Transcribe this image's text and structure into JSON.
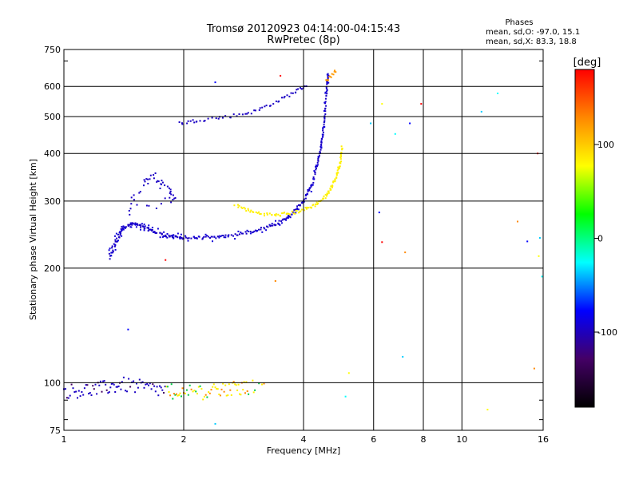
{
  "chart_data": {
    "type": "scatter",
    "title": "Tromsø 20120923 04:14:00-04:15:43",
    "subtitle": "RwPretec (8p)",
    "xlabel": "Frequency [MHz]",
    "ylabel": "Stationary phase Virtual Height [km]",
    "x_scale": "log2",
    "y_scale": "log",
    "xlim": [
      1,
      16
    ],
    "ylim": [
      75,
      750
    ],
    "x_ticks": [
      1,
      2,
      4,
      6,
      8,
      10,
      16
    ],
    "y_ticks": [
      75,
      100,
      200,
      300,
      400,
      500,
      600,
      750
    ],
    "grid": true,
    "phases_title": "Phases",
    "phases_o": "mean, sd,O: -97.0, 15.1",
    "phases_x": "mean, sd,X:  83.3, 18.8",
    "colorbar": {
      "label": "[deg]",
      "range": [
        -180,
        180
      ],
      "ticks": [
        100,
        0,
        -100
      ],
      "colors": [
        "#ff0000",
        "#ff8800",
        "#ffff00",
        "#00ff00",
        "#00ffff",
        "#0000ff",
        "#440066",
        "#000000"
      ]
    },
    "series": [
      {
        "name": "O-mode F-layer trace",
        "phase_deg": -97,
        "curve": [
          [
            1.3,
            212
          ],
          [
            1.35,
            235
          ],
          [
            1.4,
            255
          ],
          [
            1.5,
            262
          ],
          [
            1.6,
            255
          ],
          [
            1.7,
            248
          ],
          [
            1.85,
            242
          ],
          [
            2.0,
            240
          ],
          [
            2.3,
            240
          ],
          [
            2.6,
            243
          ],
          [
            3.0,
            250
          ],
          [
            3.4,
            260
          ],
          [
            3.7,
            275
          ],
          [
            4.0,
            300
          ],
          [
            4.2,
            330
          ],
          [
            4.35,
            380
          ],
          [
            4.45,
            430
          ],
          [
            4.52,
            500
          ],
          [
            4.58,
            600
          ],
          [
            4.62,
            650
          ]
        ],
        "upper_curve": [
          [
            1.95,
            480
          ],
          [
            2.2,
            490
          ],
          [
            2.6,
            500
          ],
          [
            3.0,
            515
          ],
          [
            3.4,
            545
          ],
          [
            3.8,
            580
          ],
          [
            4.1,
            605
          ]
        ],
        "cluster": [
          [
            1.45,
            280
          ],
          [
            1.55,
            320
          ],
          [
            1.65,
            355
          ],
          [
            1.75,
            330
          ],
          [
            1.85,
            320
          ],
          [
            1.9,
            300
          ],
          [
            1.5,
            290
          ]
        ]
      },
      {
        "name": "X-mode F-layer trace",
        "phase_deg": 83,
        "curve": [
          [
            2.7,
            292
          ],
          [
            3.0,
            280
          ],
          [
            3.4,
            275
          ],
          [
            3.8,
            280
          ],
          [
            4.2,
            290
          ],
          [
            4.5,
            305
          ],
          [
            4.7,
            325
          ],
          [
            4.85,
            350
          ],
          [
            4.95,
            380
          ],
          [
            5.0,
            420
          ]
        ],
        "upper_curve": [
          [
            4.55,
            620
          ],
          [
            4.7,
            640
          ],
          [
            4.85,
            665
          ]
        ]
      },
      {
        "name": "E-region echoes",
        "band": [
          [
            1.0,
            95
          ],
          [
            1.2,
            96
          ],
          [
            1.4,
            99
          ],
          [
            1.7,
            96
          ],
          [
            2.0,
            94
          ],
          [
            2.4,
            95
          ],
          [
            2.8,
            97
          ],
          [
            3.2,
            98
          ]
        ]
      },
      {
        "name": "scattered points",
        "points": [
          [
            2.4,
            615
          ],
          [
            3.5,
            640
          ],
          [
            5.9,
            480
          ],
          [
            6.3,
            540
          ],
          [
            6.8,
            450
          ],
          [
            7.2,
            220
          ],
          [
            7.4,
            480
          ],
          [
            7.9,
            540
          ],
          [
            11.2,
            515
          ],
          [
            11.6,
            85
          ],
          [
            12.3,
            575
          ],
          [
            13.8,
            265
          ],
          [
            14.6,
            235
          ],
          [
            15.5,
            400
          ],
          [
            15.7,
            240
          ],
          [
            15.6,
            215
          ],
          [
            15.9,
            190
          ],
          [
            15.2,
            109
          ],
          [
            6.2,
            280
          ],
          [
            6.3,
            234
          ],
          [
            7.1,
            117
          ],
          [
            5.2,
            106
          ],
          [
            5.1,
            92
          ],
          [
            3.4,
            185
          ],
          [
            1.45,
            138
          ],
          [
            1.8,
            210
          ],
          [
            2.4,
            78
          ]
        ]
      }
    ]
  }
}
